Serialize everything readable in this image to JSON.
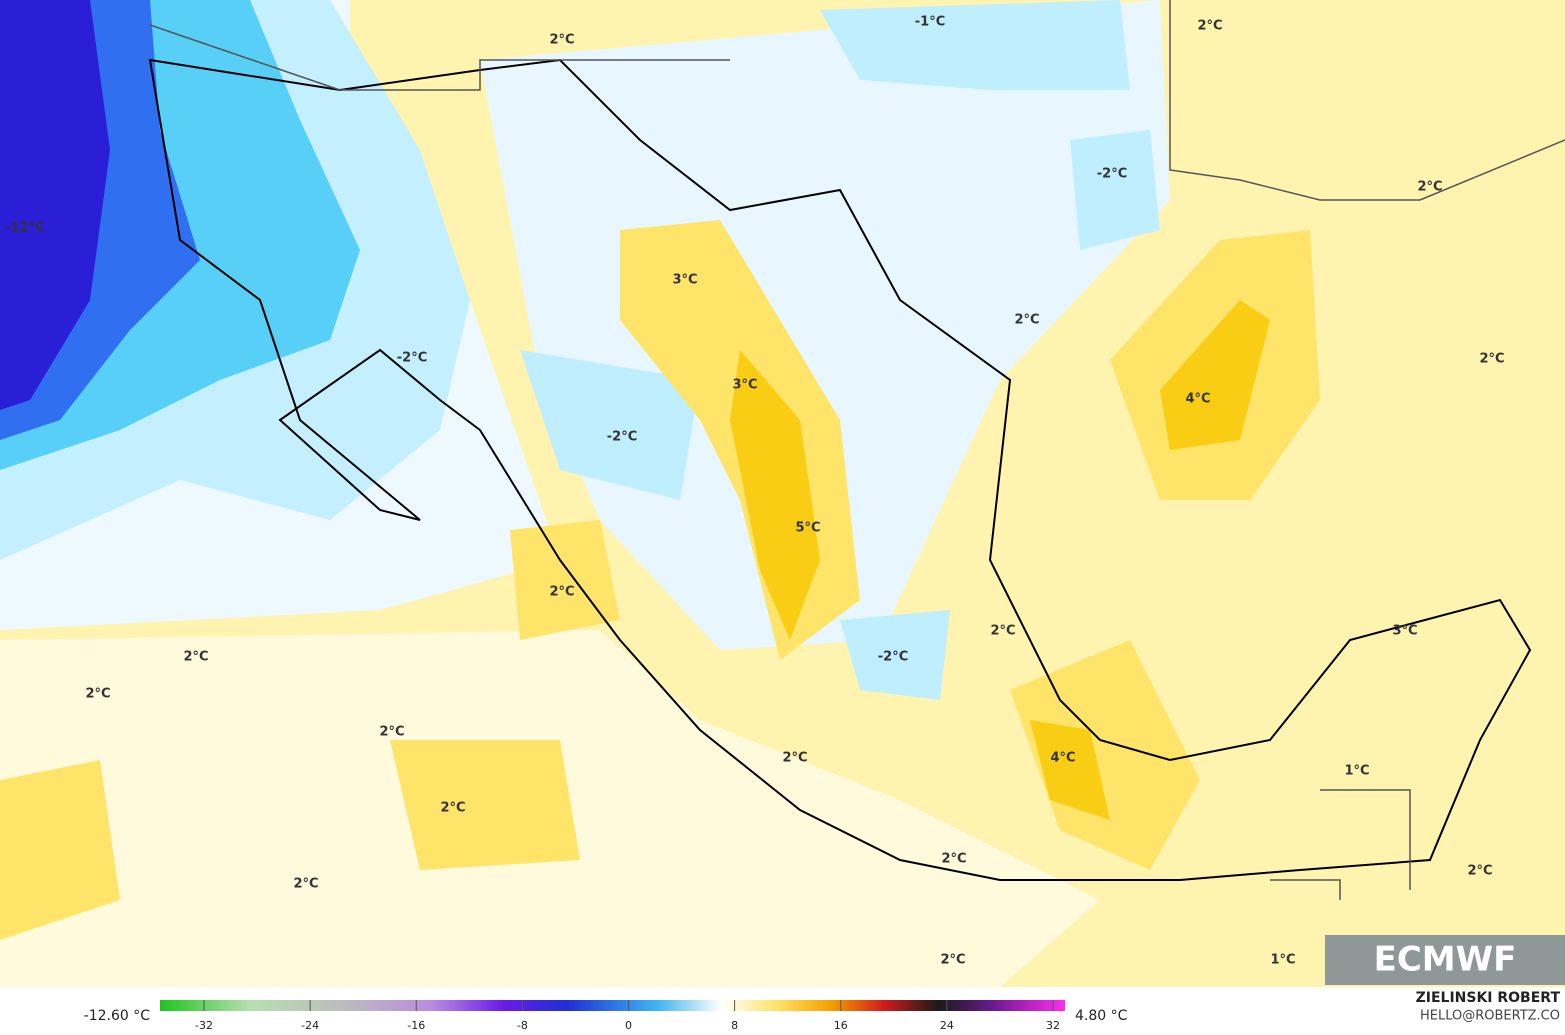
{
  "map": {
    "labels": [
      "2°C",
      "-1°C",
      "2°C",
      "-12°C",
      "-2°C",
      "2°C",
      "3°C",
      "2°C",
      "-2°C",
      "3°C",
      "2°C",
      "4°C",
      "-2°C",
      "5°C",
      "2°C",
      "2°C",
      "3°C",
      "-2°C",
      "2°C",
      "2°C",
      "2°C",
      "2°C",
      "4°C",
      "1°C",
      "2°C",
      "2°C",
      "2°C",
      "2°C",
      "2°C",
      "1°C"
    ]
  },
  "colorbar": {
    "min_label": "-12.60 °C",
    "max_label": "4.80 °C",
    "ticks": [
      -32,
      -24,
      -16,
      -8,
      0,
      8,
      16,
      24,
      32
    ]
  },
  "footer": {
    "author": "ZIELINSKI ROBERT",
    "email": "HELLO@ROBERTZ.CO",
    "logo": "ECMWF"
  }
}
